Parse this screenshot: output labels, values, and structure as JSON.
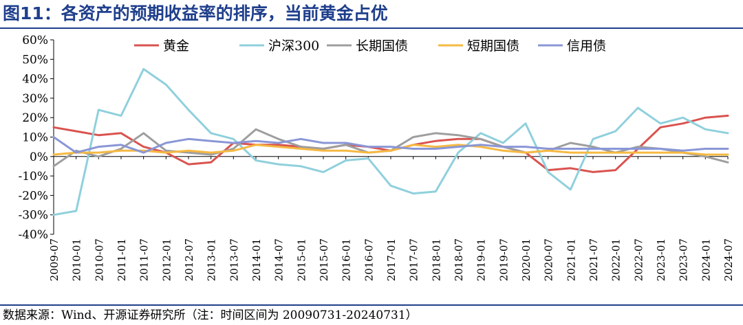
{
  "header": {
    "title": "图11：各资产的预期收益率的排序，当前黄金占优"
  },
  "footer": {
    "source": "数据来源：Wind、开源证券研究所（注：时间区间为 20090731-20240731）"
  },
  "chart_data": {
    "type": "line",
    "title": "图11：各资产的预期收益率的排序，当前黄金占优",
    "xlabel": "",
    "ylabel": "",
    "y_unit": "%",
    "ylim": [
      -40,
      60
    ],
    "yticks": [
      -40,
      -30,
      -20,
      -10,
      0,
      10,
      20,
      30,
      40,
      50,
      60
    ],
    "ytick_labels": [
      "-40%",
      "-30%",
      "-20%",
      "-10%",
      "0%",
      "10%",
      "20%",
      "30%",
      "40%",
      "50%",
      "60%"
    ],
    "x_start": "2009-07",
    "x_end": "2024-07",
    "xtick_labels": [
      "2009-07",
      "2010-01",
      "2010-07",
      "2011-01",
      "2011-07",
      "2012-01",
      "2012-07",
      "2013-01",
      "2013-07",
      "2014-01",
      "2014-07",
      "2015-01",
      "2015-07",
      "2016-01",
      "2016-07",
      "2017-01",
      "2017-07",
      "2018-01",
      "2018-07",
      "2019-01",
      "2019-07",
      "2020-01",
      "2020-07",
      "2021-01",
      "2021-07",
      "2022-01",
      "2022-07",
      "2023-01",
      "2023-07",
      "2024-01",
      "2024-07"
    ],
    "legend_position": "top",
    "grid": false,
    "series_index_note": "each series lists values at the half-year ticks 2009-07 through 2024-07",
    "series": [
      {
        "name": "黄金",
        "color": "#d9534f",
        "values": [
          15,
          13,
          11,
          12,
          5,
          2,
          -4,
          -3,
          7,
          6,
          6,
          5,
          4,
          6,
          5,
          3,
          6,
          8,
          9,
          9,
          5,
          2,
          -7,
          -6,
          -8,
          -7,
          4,
          15,
          17,
          20,
          21
        ]
      },
      {
        "name": "沪深300",
        "color": "#8fd0dc",
        "values": [
          -30,
          -28,
          24,
          21,
          45,
          37,
          24,
          12,
          9,
          -2,
          -4,
          -5,
          -8,
          -2,
          -1,
          -15,
          -19,
          -18,
          2,
          12,
          7,
          17,
          -8,
          -17,
          9,
          13,
          25,
          17,
          20,
          14,
          12
        ]
      },
      {
        "name": "长期国债",
        "color": "#9e9e9e",
        "values": [
          -5,
          3,
          0,
          4,
          12,
          3,
          2,
          1,
          4,
          14,
          9,
          5,
          4,
          6,
          2,
          3,
          10,
          12,
          11,
          9,
          5,
          2,
          3,
          7,
          5,
          2,
          5,
          4,
          2,
          0,
          -3
        ]
      },
      {
        "name": "短期国债",
        "color": "#f5b942",
        "values": [
          1,
          2,
          2,
          3,
          3,
          2,
          3,
          2,
          3,
          6,
          5,
          4,
          3,
          3,
          2,
          3,
          6,
          5,
          6,
          5,
          3,
          2,
          3,
          2,
          2,
          2,
          2,
          2,
          2,
          1,
          1
        ]
      },
      {
        "name": "信用债",
        "color": "#8a96d6",
        "values": [
          10,
          2,
          5,
          6,
          2,
          7,
          9,
          8,
          7,
          8,
          7,
          9,
          7,
          7,
          5,
          5,
          4,
          4,
          5,
          6,
          5,
          5,
          4,
          4,
          4,
          4,
          4,
          4,
          3,
          4,
          4
        ]
      }
    ]
  }
}
